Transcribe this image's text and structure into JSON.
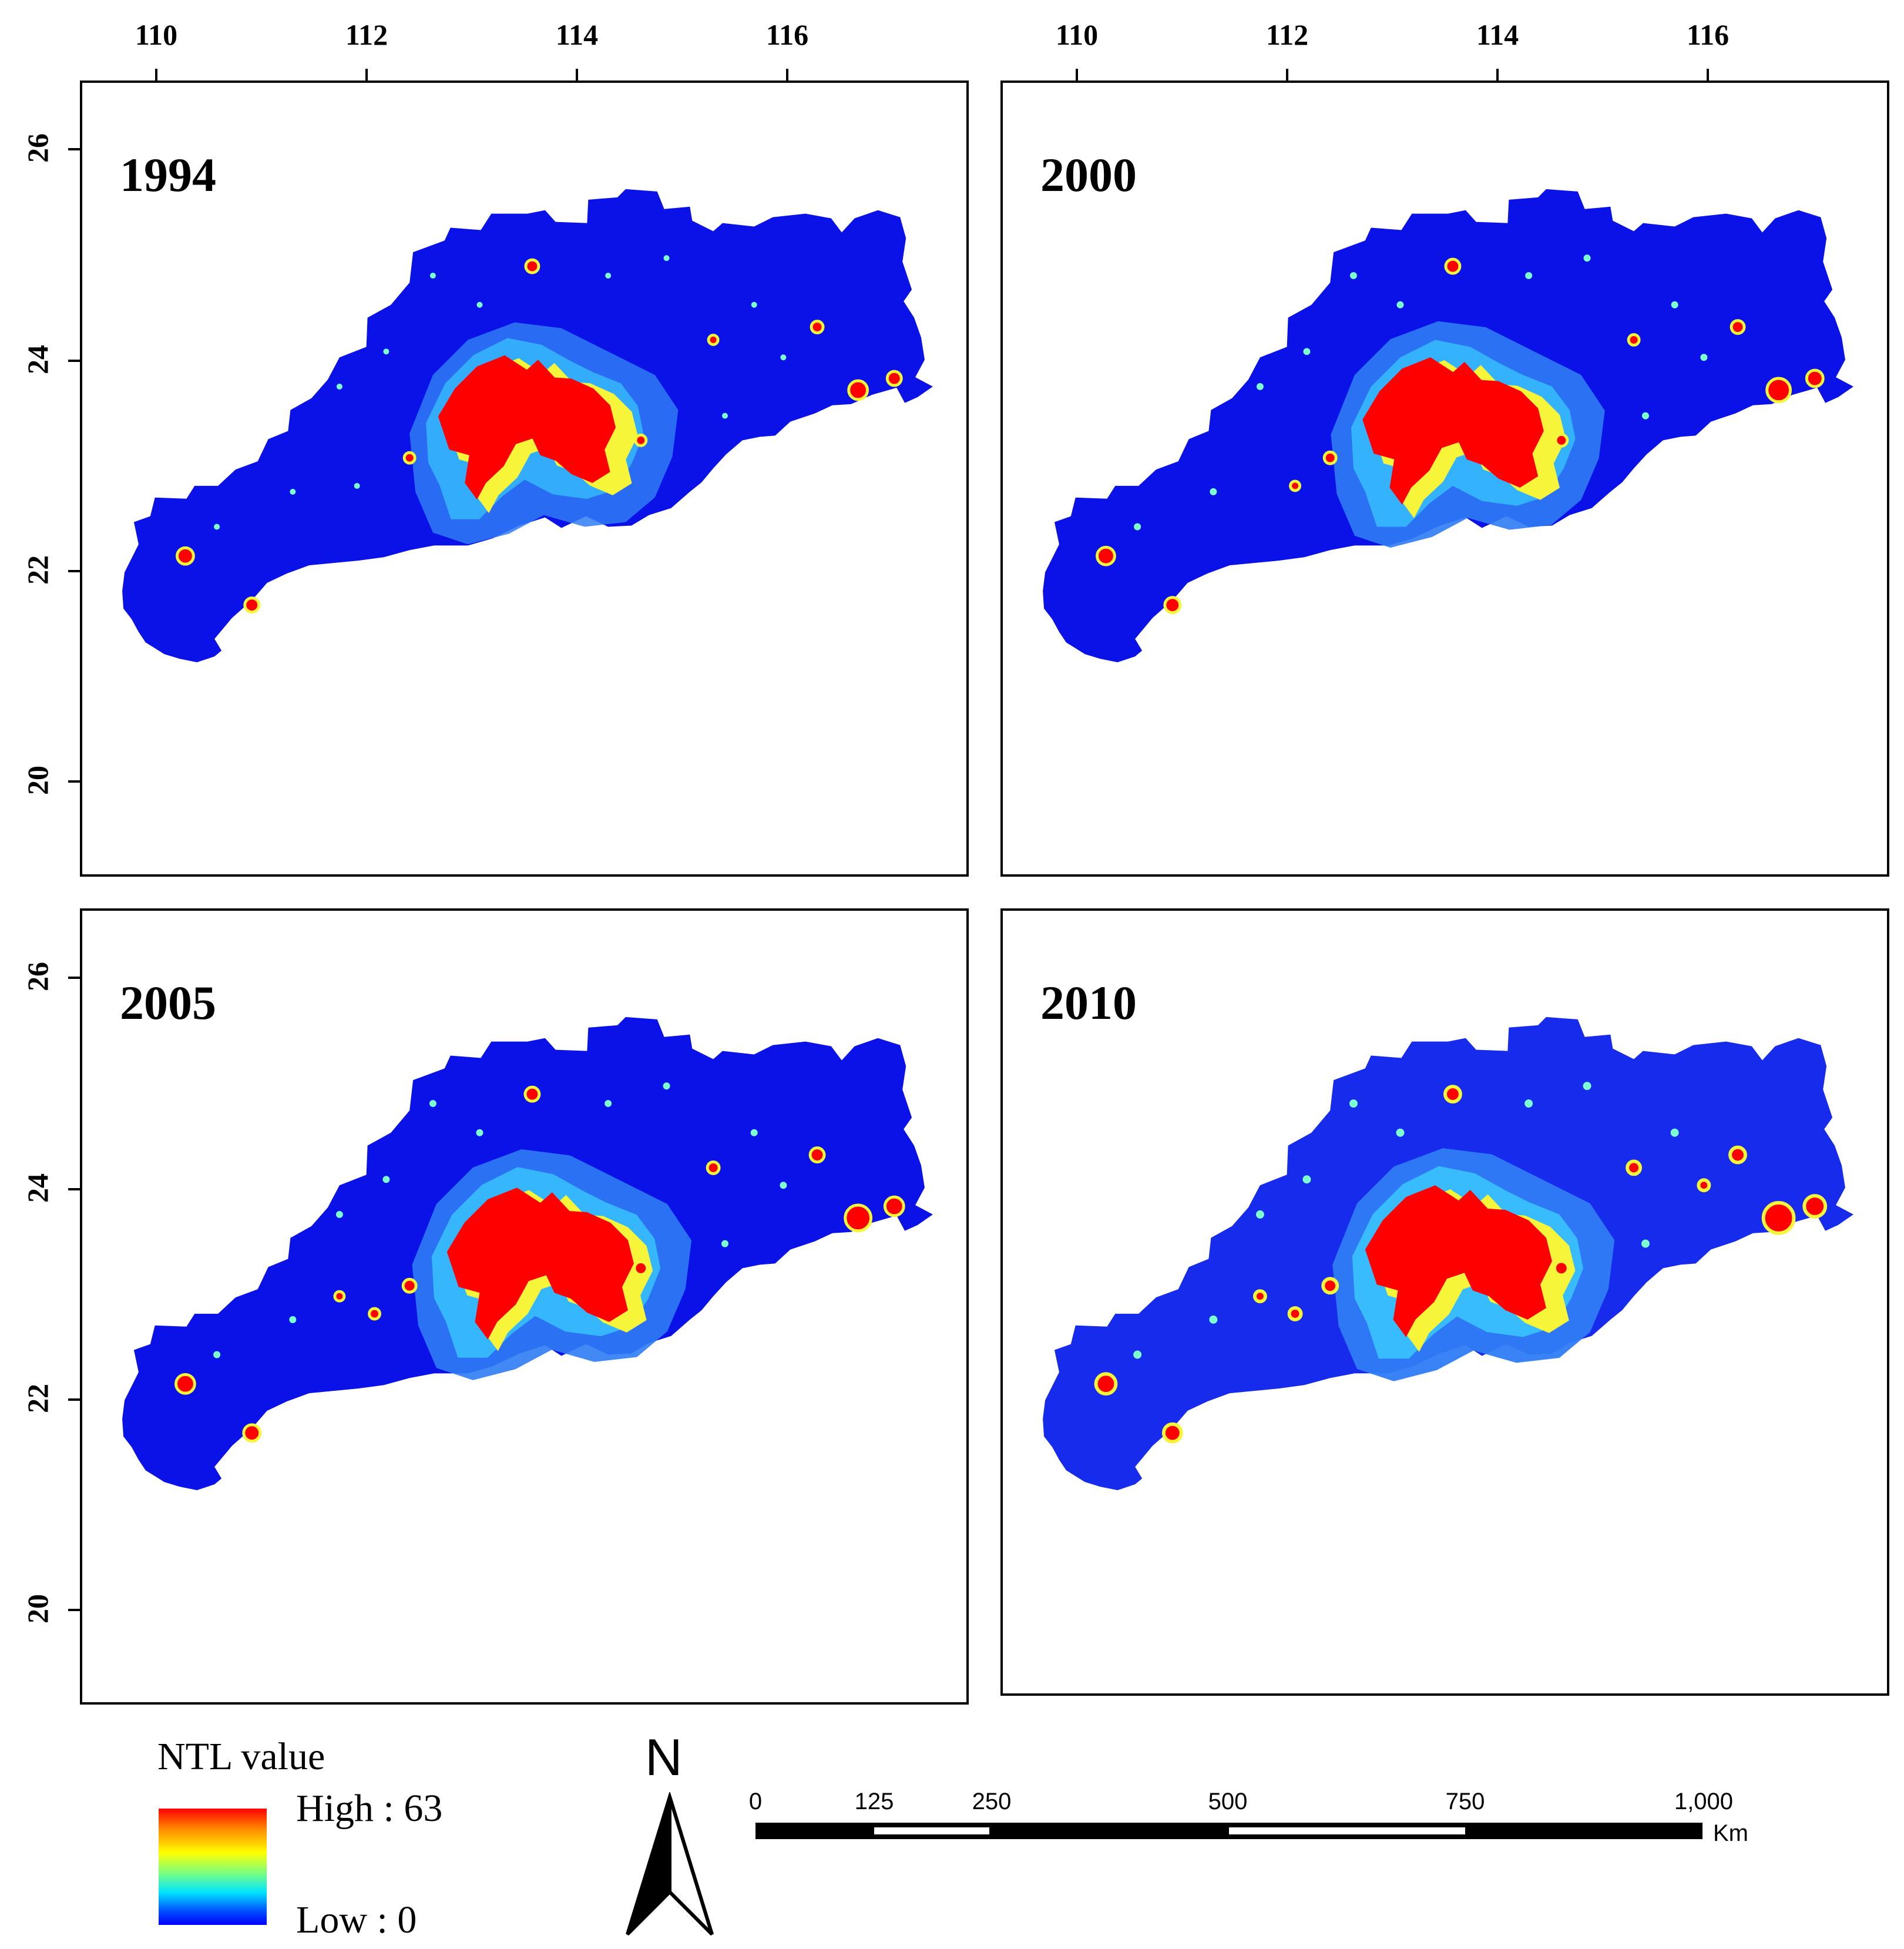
{
  "axes": {
    "top_x_ticks": [
      "110",
      "112",
      "114",
      "116"
    ],
    "left_y_ticks": [
      "26",
      "24",
      "22",
      "20"
    ]
  },
  "panels": [
    {
      "year": "1994"
    },
    {
      "year": "2000"
    },
    {
      "year": "2005"
    },
    {
      "year": "2010"
    }
  ],
  "legend": {
    "title": "NTL value",
    "high_label": "High : 63",
    "low_label": "Low : 0"
  },
  "north_arrow": {
    "label": "N"
  },
  "scale_bar": {
    "labels": [
      "0",
      "125",
      "250",
      "500",
      "750",
      "1,000"
    ],
    "unit": "Km"
  },
  "colors": {
    "background_blue": "#0a12e8",
    "mid_blue": "#2f5cf2",
    "cyan": "#39c8ff",
    "yellow": "#f6f53a",
    "red": "#ff0000"
  }
}
